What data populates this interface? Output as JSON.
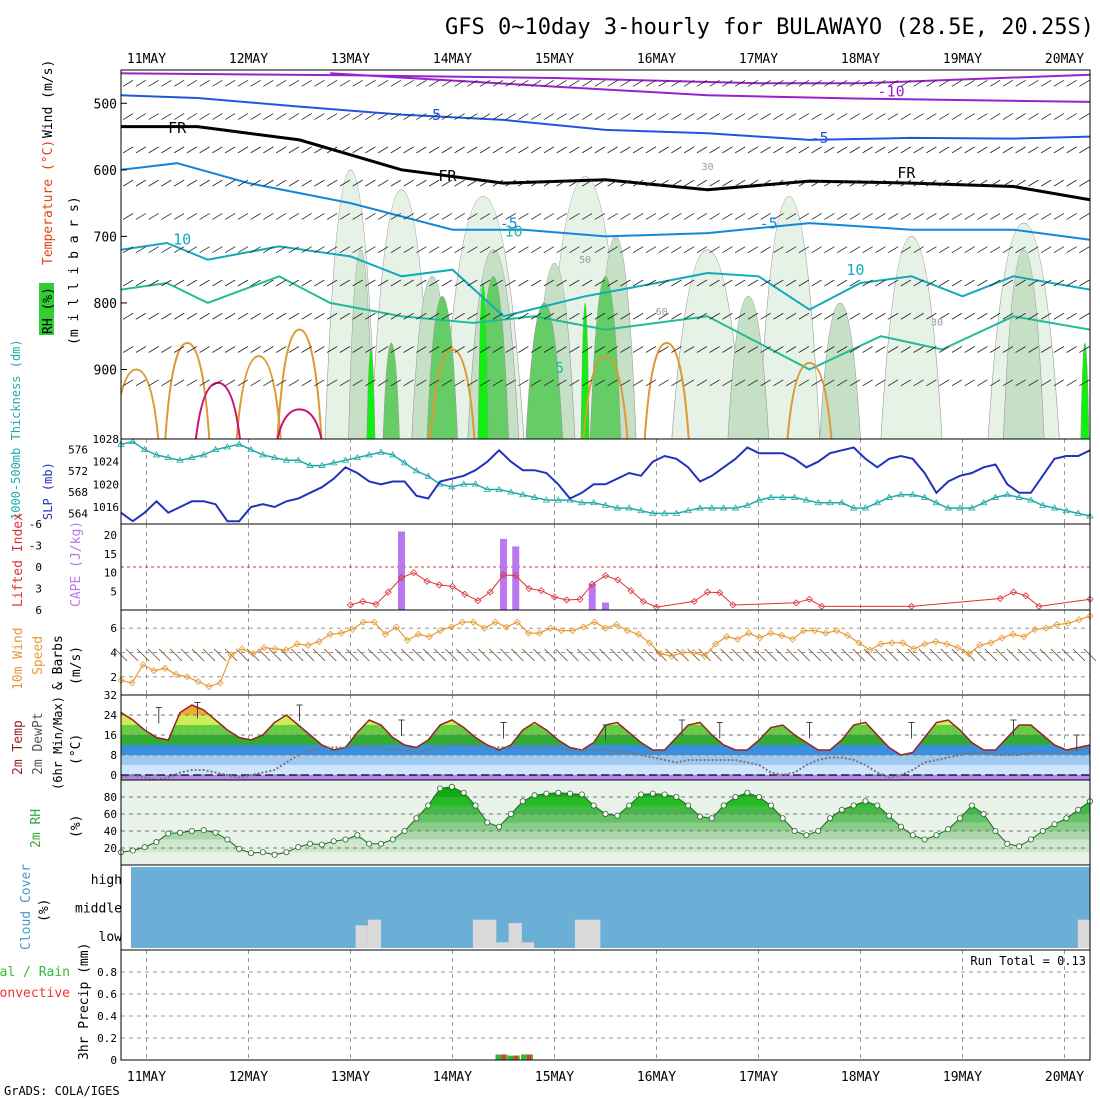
{
  "title": "GFS 0~10day 3-hourly for BULAWAYO (28.5E, 20.25S)",
  "footer": "GrADS: COLA/IGES",
  "day_labels": [
    "11MAY",
    "12MAY",
    "13MAY",
    "14MAY",
    "15MAY",
    "16MAY",
    "17MAY",
    "18MAY",
    "19MAY",
    "20MAY"
  ],
  "panels": {
    "upper": {
      "label_parts": [
        "RH (%)",
        "Temperature (°C)",
        "Wind (m/s)"
      ],
      "label_colors": [
        "#000000",
        "#dd4411",
        "#000000"
      ],
      "sub_label": "(m i l l i b a r s)",
      "contour_labels": [
        "-10",
        "-5",
        "-5",
        "FR",
        "FR",
        "FR",
        "-5",
        "-5",
        "10",
        "10",
        "5",
        "10",
        "30",
        "50",
        "60",
        "30"
      ]
    },
    "slp": {
      "label_left": "1000-500mb Thickness (dm)",
      "label_right": "SLP (mb)"
    },
    "cape": {
      "label_left": "Lifted Index",
      "label_right": "CAPE (J/kg)"
    },
    "wind10": {
      "label_a": "10m Wind",
      "label_b": "Speed",
      "label_c": "& Barbs",
      "unit": "(m/s)"
    },
    "temp2m": {
      "label_a": "2m Temp",
      "label_b": "2m DewPt",
      "label_c": "(6hr Min/Max)",
      "unit": "(°C)"
    },
    "rh2m": {
      "label_a": "2m RH",
      "unit": "(%)"
    },
    "cloud": {
      "label": "Cloud Cover",
      "unit": "(%)",
      "levels": [
        "high",
        "middle",
        "low"
      ]
    },
    "precip": {
      "label_a": "Total / Rain",
      "label_b": "Convective",
      "label_c": "3hr Precip (mm)",
      "run_total": "Run Total = 0.13"
    }
  },
  "colors": {
    "slp": "#2233bb",
    "thickness": "#22aaaa",
    "lifted": "#dd3333",
    "cape": "#bb77ee",
    "wind": "#e69a33",
    "temp": "#992222",
    "dewpt": "#777777",
    "rh": "#33aa33",
    "cloud_bg": "#6baed6",
    "cloud_low": "#d9d9d9",
    "total_rain": "#33bb33",
    "convective": "#ee3333"
  },
  "chart_data": [
    {
      "type": "heatmap",
      "name": "upper-air",
      "y_ticks": [
        500,
        600,
        700,
        800,
        900
      ],
      "ylim": [
        1000,
        450
      ],
      "rh_thresholds": [
        10,
        30,
        50,
        70,
        90
      ],
      "temperature_contours": [
        -10,
        -5,
        0,
        5,
        10,
        15,
        20
      ]
    },
    {
      "type": "line",
      "name": "slp-thickness",
      "x_days": [
        10.75,
        20.25
      ],
      "slp_ticks": [
        1016,
        1020,
        1024,
        1028
      ],
      "slp_ylim": [
        1013,
        1028
      ],
      "thickness_ticks": [
        564,
        568,
        572,
        576
      ],
      "thickness_ylim": [
        562,
        578
      ],
      "slp": [
        1015,
        1013.5,
        1015,
        1017,
        1015,
        1016,
        1017,
        1017,
        1016.5,
        1013.5,
        1013.5,
        1016,
        1016.5,
        1016,
        1017,
        1017.5,
        1018.5,
        1019.5,
        1021,
        1023,
        1022,
        1020.5,
        1020,
        1020.5,
        1020.5,
        1018,
        1017.5,
        1020.5,
        1021,
        1021.5,
        1022.5,
        1024,
        1026,
        1024,
        1022.5,
        1022.5,
        1022,
        1020,
        1017.5,
        1018.5,
        1020,
        1020,
        1021,
        1022,
        1021.5,
        1024,
        1025,
        1024.5,
        1023,
        1020.5,
        1021.5,
        1023,
        1024.5,
        1026.5,
        1025.5,
        1025.5,
        1025.5,
        1024.5,
        1023,
        1024,
        1025.5,
        1026,
        1026.5,
        1024.5,
        1023,
        1024.5,
        1025,
        1024.5,
        1022,
        1018.5,
        1020.5,
        1021.5,
        1022,
        1023,
        1023.5,
        1020,
        1018.5,
        1018.5,
        1021.5,
        1024.5,
        1025,
        1025,
        1026
      ],
      "thickness": [
        577,
        577.5,
        576,
        575,
        574.5,
        574,
        574.5,
        575,
        576,
        576.5,
        577,
        576,
        575,
        574.5,
        574,
        574,
        573,
        573,
        573.5,
        574,
        574.5,
        575,
        575.5,
        575,
        573.5,
        572,
        571,
        569.5,
        569,
        569.5,
        569.5,
        568.5,
        568.5,
        568,
        567.5,
        567,
        566.5,
        566.5,
        566.5,
        566,
        566,
        565.5,
        565,
        565,
        564.5,
        564,
        564,
        564,
        564.5,
        565,
        565,
        565,
        565,
        565.5,
        566.5,
        567,
        567,
        567,
        566.5,
        566,
        566,
        566,
        565,
        565,
        566,
        567,
        567.5,
        567.5,
        567,
        566,
        565,
        565,
        565,
        566,
        567,
        567.5,
        567,
        566.5,
        565.5,
        565,
        564.5,
        564,
        563.5
      ]
    },
    {
      "type": "bar",
      "name": "cape-lifted",
      "x_days": [
        10.75,
        20.25
      ],
      "cape_ticks": [
        5,
        10,
        15,
        20
      ],
      "cape_ylim": [
        0,
        23
      ],
      "lifted_ticks": [
        -6,
        -3,
        0,
        3,
        6
      ],
      "lifted_ylim": [
        6,
        -6
      ],
      "cape_bars": [
        {
          "day": 13.5,
          "value": 21
        },
        {
          "day": 14.5,
          "value": 19
        },
        {
          "day": 14.62,
          "value": 17
        },
        {
          "day": 15.37,
          "value": 7
        },
        {
          "day": 15.5,
          "value": 2
        }
      ],
      "lifted_x": [
        13,
        13.12,
        13.25,
        13.37,
        13.5,
        13.62,
        13.75,
        13.87,
        14,
        14.12,
        14.25,
        14.37,
        14.5,
        14.62,
        14.75,
        14.87,
        15,
        15.12,
        15.25,
        15.37,
        15.5,
        15.62,
        15.75,
        15.87,
        16,
        16.37,
        16.5,
        16.62,
        16.75,
        17.37,
        17.5,
        17.62,
        18.5,
        19.37,
        19.5,
        19.62,
        19.75,
        20.25
      ],
      "lifted_index": [
        5.3,
        4.8,
        5.2,
        3.5,
        1.5,
        0.8,
        2,
        2.5,
        2.7,
        3.8,
        4.7,
        3.5,
        1.1,
        1.2,
        3,
        3.3,
        4.2,
        4.6,
        4.5,
        2.4,
        1.2,
        1.8,
        3.3,
        4.8,
        5.6,
        4.8,
        3.5,
        3.6,
        5.3,
        5,
        4.5,
        5.5,
        5.5,
        4.4,
        3.5,
        4,
        5.5,
        4.5
      ]
    },
    {
      "type": "line",
      "name": "wind-10m",
      "x_days": [
        10.75,
        20.25
      ],
      "ticks": [
        2,
        4,
        6
      ],
      "ylim": [
        0.5,
        7.5
      ],
      "speed": [
        1.7,
        1.5,
        3,
        2.5,
        2.7,
        2.2,
        2,
        1.6,
        1.2,
        1.5,
        3.8,
        4.3,
        3.9,
        4.4,
        4.3,
        4.2,
        4.7,
        4.6,
        4.9,
        5.5,
        5.6,
        5.9,
        6.5,
        6.5,
        5.5,
        6.1,
        5,
        5.5,
        5.3,
        5.8,
        6.1,
        6.5,
        6.5,
        6,
        6.5,
        6.1,
        6.5,
        5.6,
        5.6,
        6,
        5.8,
        5.8,
        6.1,
        6.5,
        6,
        6.3,
        5.8,
        5.5,
        4.8,
        3.9,
        3.7,
        4,
        4,
        3.7,
        4.7,
        5.3,
        5.1,
        5.6,
        5.2,
        5.6,
        5.4,
        5.1,
        5.8,
        5.8,
        5.6,
        5.8,
        5.4,
        4.8,
        4.2,
        4.7,
        4.8,
        4.8,
        4.3,
        4.7,
        4.9,
        4.7,
        4.4,
        3.9,
        4.6,
        4.8,
        5.2,
        5.5,
        5.3,
        5.9,
        6,
        6.3,
        6.4,
        6.7,
        7
      ]
    },
    {
      "type": "area",
      "name": "temp-dewpt-2m",
      "x_days": [
        10.75,
        20.25
      ],
      "ticks": [
        0,
        8,
        16,
        24,
        32
      ],
      "ylim": [
        -2,
        32
      ],
      "temp": [
        25,
        22,
        18,
        15,
        14,
        25,
        28,
        26,
        22,
        18,
        15,
        14,
        16,
        21,
        24,
        20,
        16,
        12,
        10,
        11,
        17,
        22,
        20,
        15,
        12,
        11,
        14,
        20,
        22,
        19,
        15,
        12,
        10,
        12,
        18,
        21,
        18,
        14,
        11,
        10,
        13,
        20,
        21,
        17,
        13,
        10,
        10,
        15,
        20,
        21,
        16,
        12,
        10,
        10,
        14,
        19,
        20,
        16,
        13,
        10,
        10,
        14,
        20,
        21,
        16,
        11,
        8,
        9,
        15,
        21,
        22,
        18,
        13,
        10,
        10,
        15,
        20,
        20,
        16,
        12,
        10,
        11,
        12
      ],
      "dewpt": [
        -1,
        0,
        -1,
        -2,
        -1,
        1,
        2,
        2,
        1,
        0,
        -1,
        0,
        1,
        2,
        5,
        8,
        10,
        11,
        11,
        11,
        12,
        11,
        11,
        10,
        10,
        9,
        10,
        11,
        12,
        12,
        12,
        11,
        11,
        11,
        11,
        11,
        11,
        11,
        10,
        10,
        10,
        10,
        9,
        9,
        8,
        7,
        6,
        5,
        6,
        6,
        6,
        6,
        6,
        5,
        4,
        1,
        0,
        1,
        4,
        6,
        7,
        7,
        6,
        4,
        1,
        -1,
        0,
        2,
        5,
        6,
        7,
        8,
        9,
        9,
        8,
        8,
        8,
        9,
        9,
        9,
        9,
        10,
        11
      ],
      "max_days": [
        11.12,
        11.5,
        12.5,
        13.5,
        14.5,
        15.5,
        16.25,
        16.62,
        17.5,
        18.5,
        19.5,
        20.12
      ],
      "max_values": [
        27,
        29,
        28,
        22,
        21,
        20,
        22,
        21,
        21,
        21,
        22,
        16
      ]
    },
    {
      "type": "area",
      "name": "rh-2m",
      "x_days": [
        10.75,
        20.25
      ],
      "ticks": [
        20,
        40,
        60,
        80
      ],
      "ylim": [
        0,
        100
      ],
      "rh": [
        15,
        17,
        21,
        27,
        37,
        38,
        40,
        41,
        38,
        30,
        19,
        14,
        15,
        12,
        15,
        21,
        25,
        24,
        28,
        30,
        35,
        25,
        25,
        30,
        40,
        55,
        70,
        90,
        92,
        85,
        70,
        50,
        45,
        60,
        75,
        82,
        84,
        85,
        84,
        83,
        70,
        60,
        58,
        70,
        83,
        84,
        83,
        80,
        70,
        57,
        55,
        70,
        80,
        85,
        80,
        70,
        55,
        40,
        35,
        40,
        55,
        65,
        70,
        75,
        70,
        58,
        45,
        35,
        30,
        35,
        42,
        55,
        70,
        60,
        40,
        25,
        22,
        30,
        40,
        48,
        55,
        65,
        75
      ]
    },
    {
      "type": "bar",
      "name": "cloud-cover",
      "x_days": [
        10.75,
        20.25
      ],
      "levels": [
        "high",
        "middle",
        "low"
      ],
      "low_bars": [
        {
          "day_start": 13.05,
          "day_end": 13.17,
          "value": 20
        },
        {
          "day_start": 13.17,
          "day_end": 13.3,
          "value": 25
        },
        {
          "day_start": 14.2,
          "day_end": 14.43,
          "value": 25
        },
        {
          "day_start": 14.43,
          "day_end": 14.55,
          "value": 5
        },
        {
          "day_start": 14.55,
          "day_end": 14.68,
          "value": 22
        },
        {
          "day_start": 14.68,
          "day_end": 14.8,
          "value": 5
        },
        {
          "day_start": 15.2,
          "day_end": 15.45,
          "value": 25
        },
        {
          "day_start": 20.13,
          "day_end": 20.25,
          "value": 25
        }
      ]
    },
    {
      "type": "bar",
      "name": "precip-3hr",
      "x_days": [
        10.75,
        20.25
      ],
      "ticks": [
        0,
        0.2,
        0.4,
        0.6,
        0.8
      ],
      "ylim": [
        0,
        1.0
      ],
      "bars": [
        {
          "day": 14.5,
          "total": 0.05,
          "convective": 0.05
        },
        {
          "day": 14.62,
          "total": 0.04,
          "convective": 0.04
        },
        {
          "day": 14.75,
          "total": 0.05,
          "convective": 0.05
        }
      ]
    }
  ]
}
